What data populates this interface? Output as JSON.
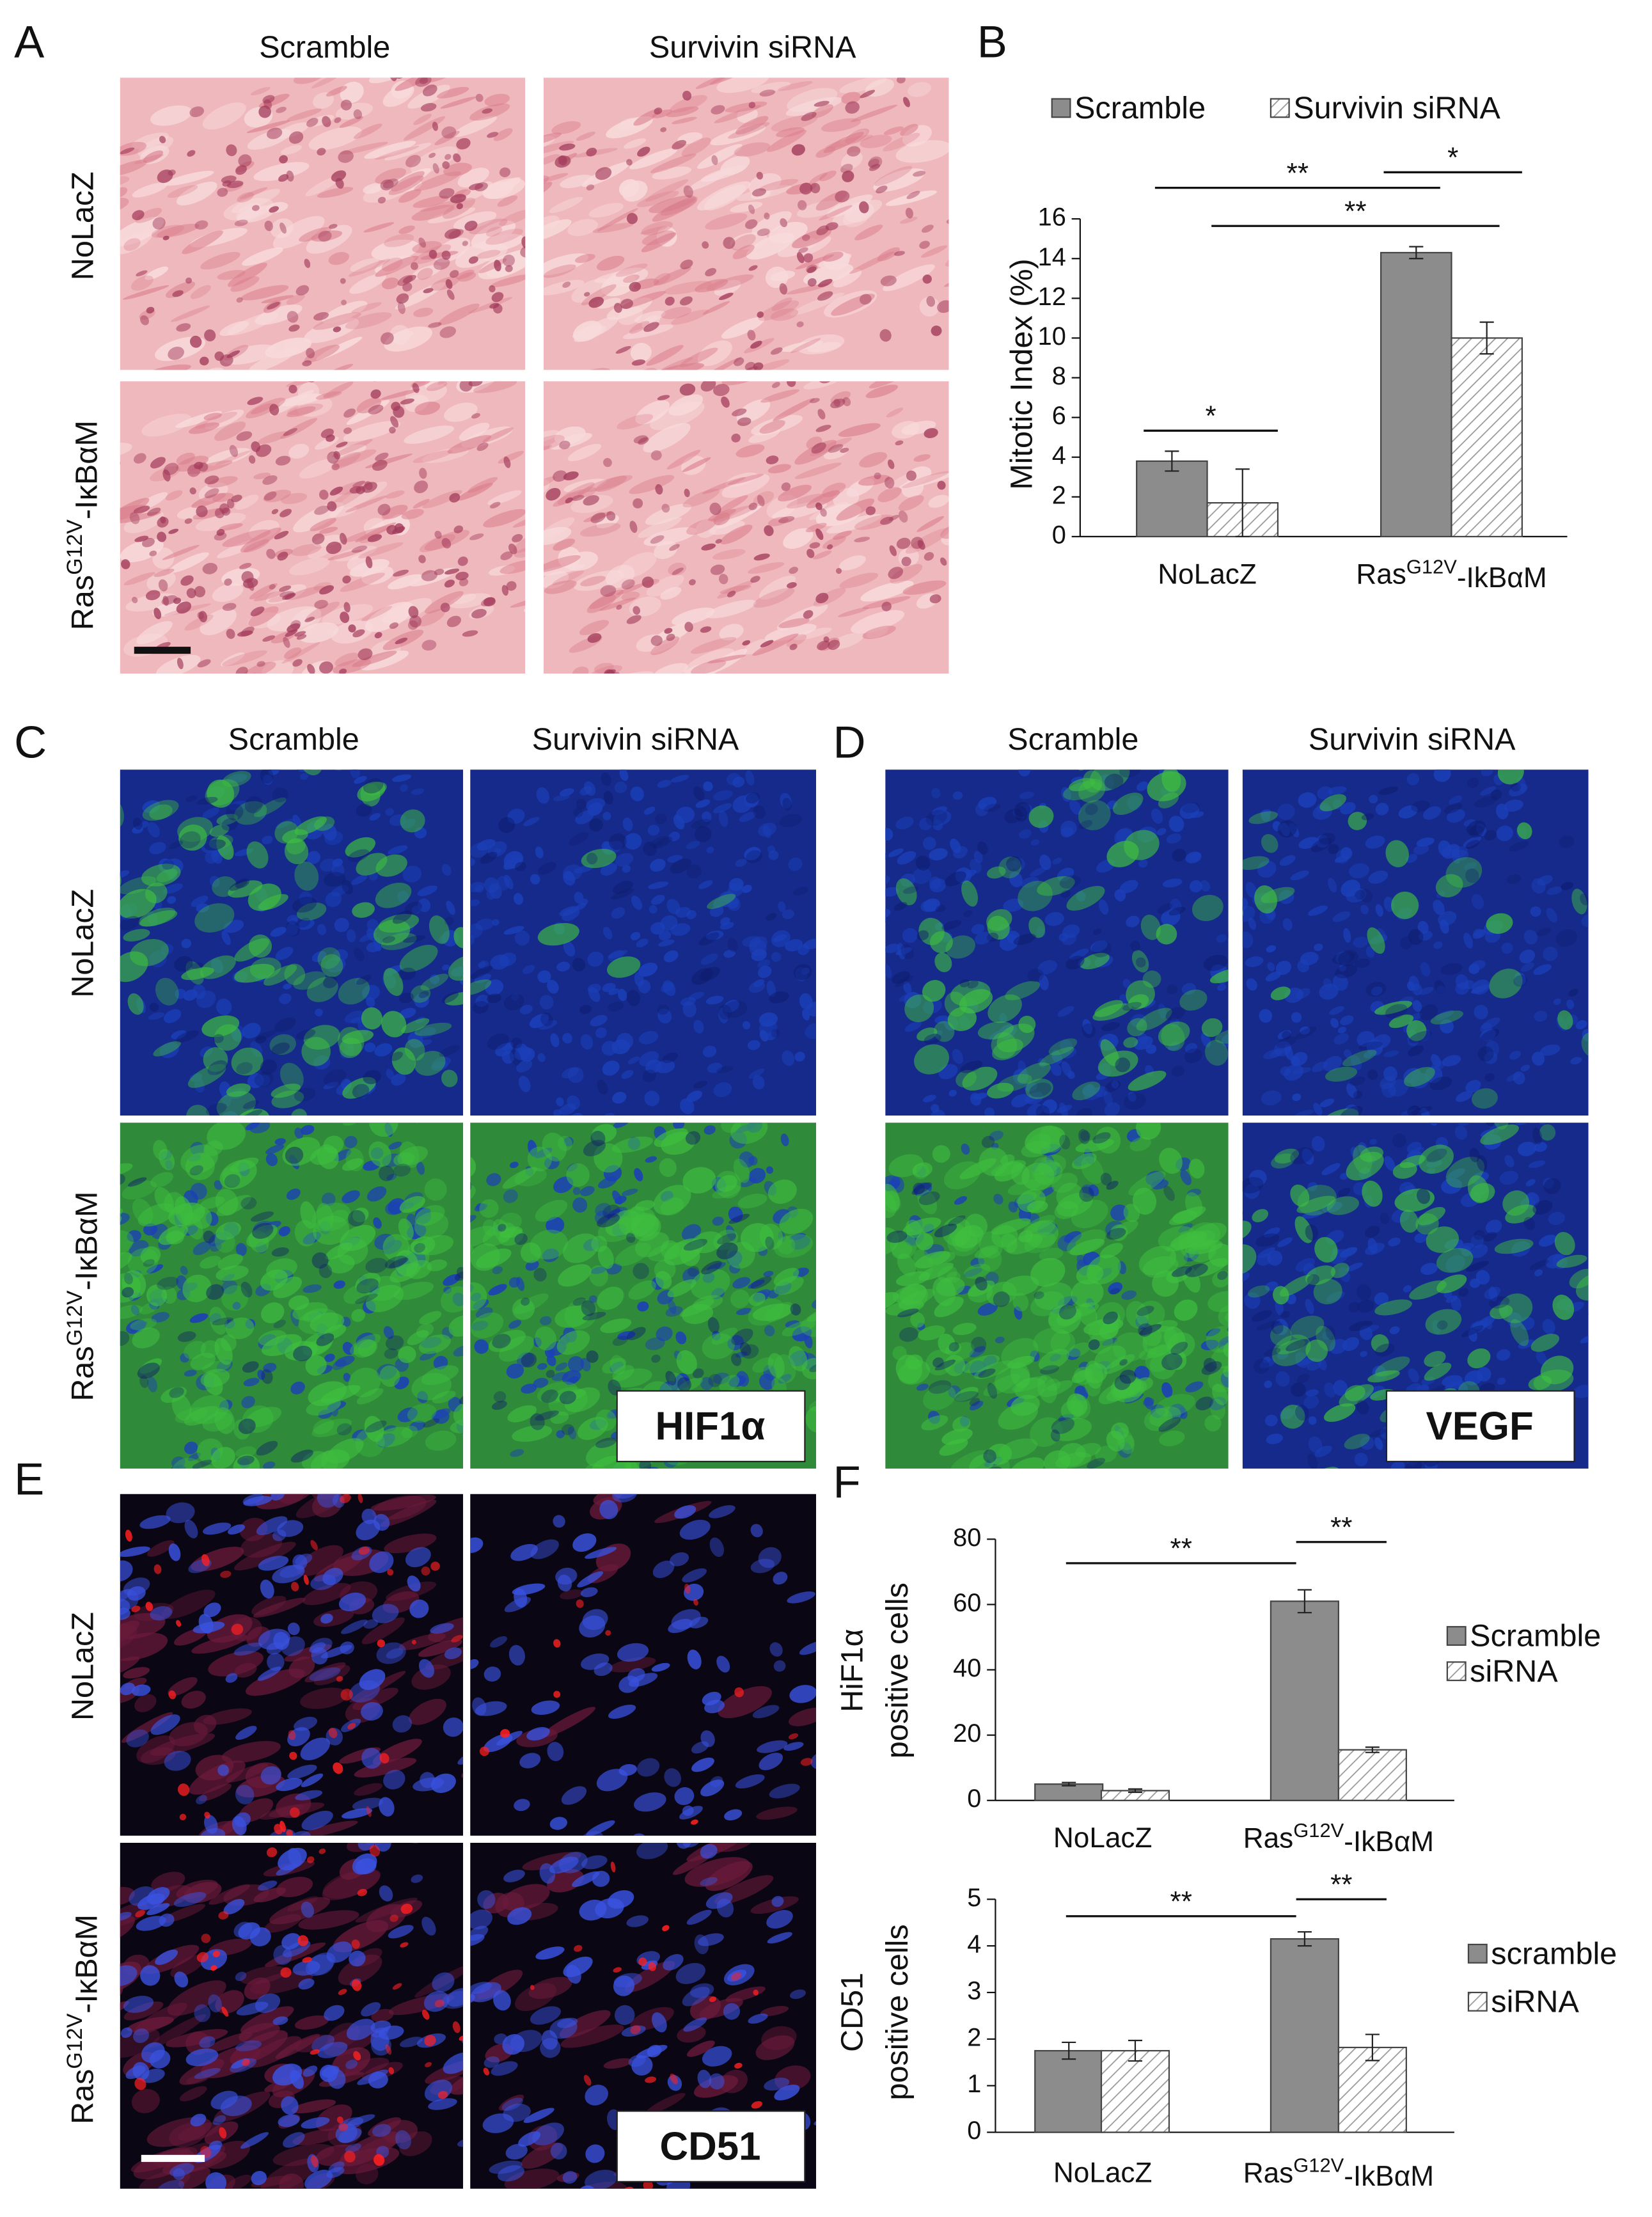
{
  "figure": {
    "panel_letters": [
      "A",
      "B",
      "C",
      "D",
      "E",
      "F"
    ],
    "panel_a": {
      "columns": [
        "Scramble",
        "Survivin siRNA"
      ],
      "rows": [
        "NoLacZ",
        "RasG12V-IκBαM"
      ]
    },
    "panel_c": {
      "columns": [
        "Scramble",
        "Survivin siRNA"
      ],
      "rows": [
        "NoLacZ",
        "RasG12V-IκBαM"
      ],
      "marker": "HIF1α"
    },
    "panel_d": {
      "columns": [
        "Scramble",
        "Survivin siRNA"
      ],
      "marker": "VEGF"
    },
    "panel_e": {
      "rows": [
        "NoLacZ",
        "RasG12V-IκBαM"
      ],
      "marker": "CD51"
    }
  },
  "chart_data": [
    {
      "type": "bar",
      "y_label": [
        "Mitotic Index (%)"
      ],
      "categories": [
        "NoLacZ",
        "RasG12V-IkBαM"
      ],
      "series": [
        {
          "name": "Scramble",
          "color": "#8c8c8c",
          "values": [
            3.8,
            14.3
          ],
          "errors": [
            0.5,
            0.3
          ]
        },
        {
          "name": "Survivin siRNA",
          "color": "#ffffff",
          "pattern": "hatched",
          "values": [
            1.7,
            10.0
          ],
          "errors": [
            1.7,
            0.8
          ]
        }
      ],
      "ylim": [
        0,
        16
      ],
      "yticks": [
        0,
        2,
        4,
        6,
        8,
        10,
        12,
        14,
        16
      ],
      "annotations": [
        "**",
        "*",
        "**",
        "*"
      ]
    },
    {
      "type": "bar",
      "y_label": [
        "HiF1α",
        "positive cells"
      ],
      "categories": [
        "NoLacZ",
        "RasG12V-IkBαM"
      ],
      "series": [
        {
          "name": "Scramble",
          "color": "#8c8c8c",
          "values": [
            5,
            61
          ],
          "errors": [
            0.5,
            3.5
          ]
        },
        {
          "name": "siRNA",
          "color": "#ffffff",
          "pattern": "hatched",
          "values": [
            3,
            15.5
          ],
          "errors": [
            0.5,
            0.8
          ]
        }
      ],
      "ylim": [
        0,
        80
      ],
      "yticks": [
        0,
        20,
        40,
        60,
        80
      ],
      "annotations": [
        "**",
        "**"
      ]
    },
    {
      "type": "bar",
      "y_label": [
        "CD51",
        "positive cells"
      ],
      "categories": [
        "NoLacZ",
        "RasG12V-IkBαM"
      ],
      "series": [
        {
          "name": "scramble",
          "color": "#8c8c8c",
          "values": [
            1.75,
            4.15
          ],
          "errors": [
            0.18,
            0.15
          ]
        },
        {
          "name": "siRNA",
          "color": "#ffffff",
          "pattern": "hatched",
          "values": [
            1.75,
            1.82
          ],
          "errors": [
            0.22,
            0.28
          ]
        }
      ],
      "ylim": [
        0,
        5
      ],
      "yticks": [
        0,
        1,
        2,
        3,
        4,
        5
      ],
      "annotations": [
        "**",
        "**"
      ]
    }
  ]
}
